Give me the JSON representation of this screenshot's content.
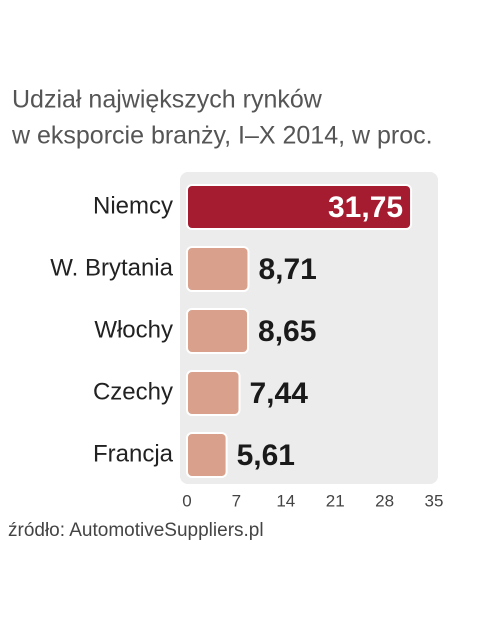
{
  "chart_data": {
    "type": "hbar",
    "title": [
      "Udział największych rynków",
      "w eksporcie branży, I–X 2014, w proc."
    ],
    "categories": [
      "Niemcy",
      "W. Brytania",
      "Włochy",
      "Czechy",
      "Francja"
    ],
    "values": [
      31.75,
      8.71,
      8.65,
      7.44,
      5.61
    ],
    "value_labels": [
      "31,75",
      "8,71",
      "8,65",
      "7,44",
      "5,61"
    ],
    "colors": [
      "#a51c30",
      "#d9a08b",
      "#d9a08b",
      "#d9a08b",
      "#d9a08b"
    ],
    "xlim": [
      0,
      35
    ],
    "xticks": [
      0,
      7,
      14,
      21,
      28,
      35
    ],
    "grid": false,
    "source": "źródło: AutomotiveSuppliers.pl"
  }
}
